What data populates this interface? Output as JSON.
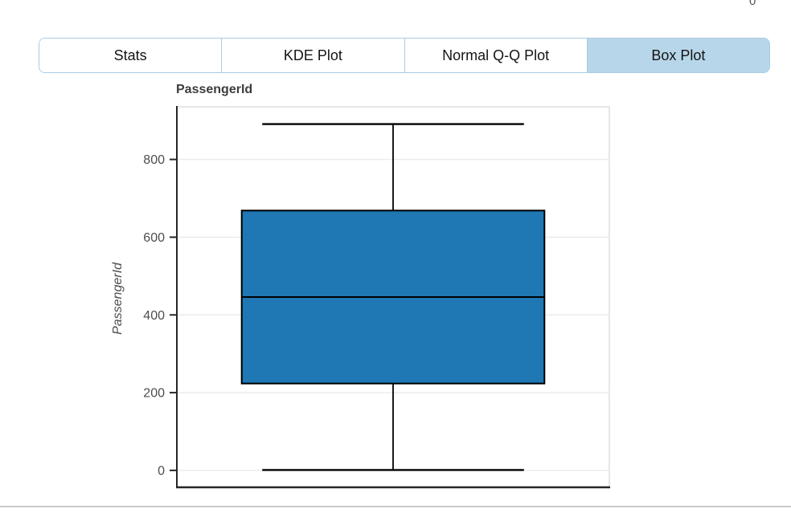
{
  "page": {
    "corner_text": "0"
  },
  "tabs": {
    "items": [
      {
        "label": "Stats",
        "active": false
      },
      {
        "label": "KDE Plot",
        "active": false
      },
      {
        "label": "Normal Q-Q Plot",
        "active": false
      },
      {
        "label": "Box Plot",
        "active": true
      }
    ],
    "active_tab": "Box Plot",
    "active_bg": "#b7d6e9",
    "border_color": "#a9cbe2"
  },
  "chart_data": {
    "type": "box",
    "title": "PassengerId",
    "ylabel": "PassengerId",
    "series": [
      {
        "name": "PassengerId",
        "whisker_low": 1,
        "q1": 223.5,
        "median": 446,
        "q3": 668.5,
        "whisker_high": 891
      }
    ],
    "yticks": [
      0,
      200,
      400,
      600,
      800
    ],
    "ylim": [
      -43.5,
      935.5
    ],
    "grid": true,
    "legend_position": "none",
    "box_fill": "#1f77b4",
    "box_stroke": "#000000",
    "grid_color": "#ebebeb",
    "spine_color": "#262626",
    "outer_border_color": "#dedede",
    "tick_label_color": "#4d4d4d"
  }
}
